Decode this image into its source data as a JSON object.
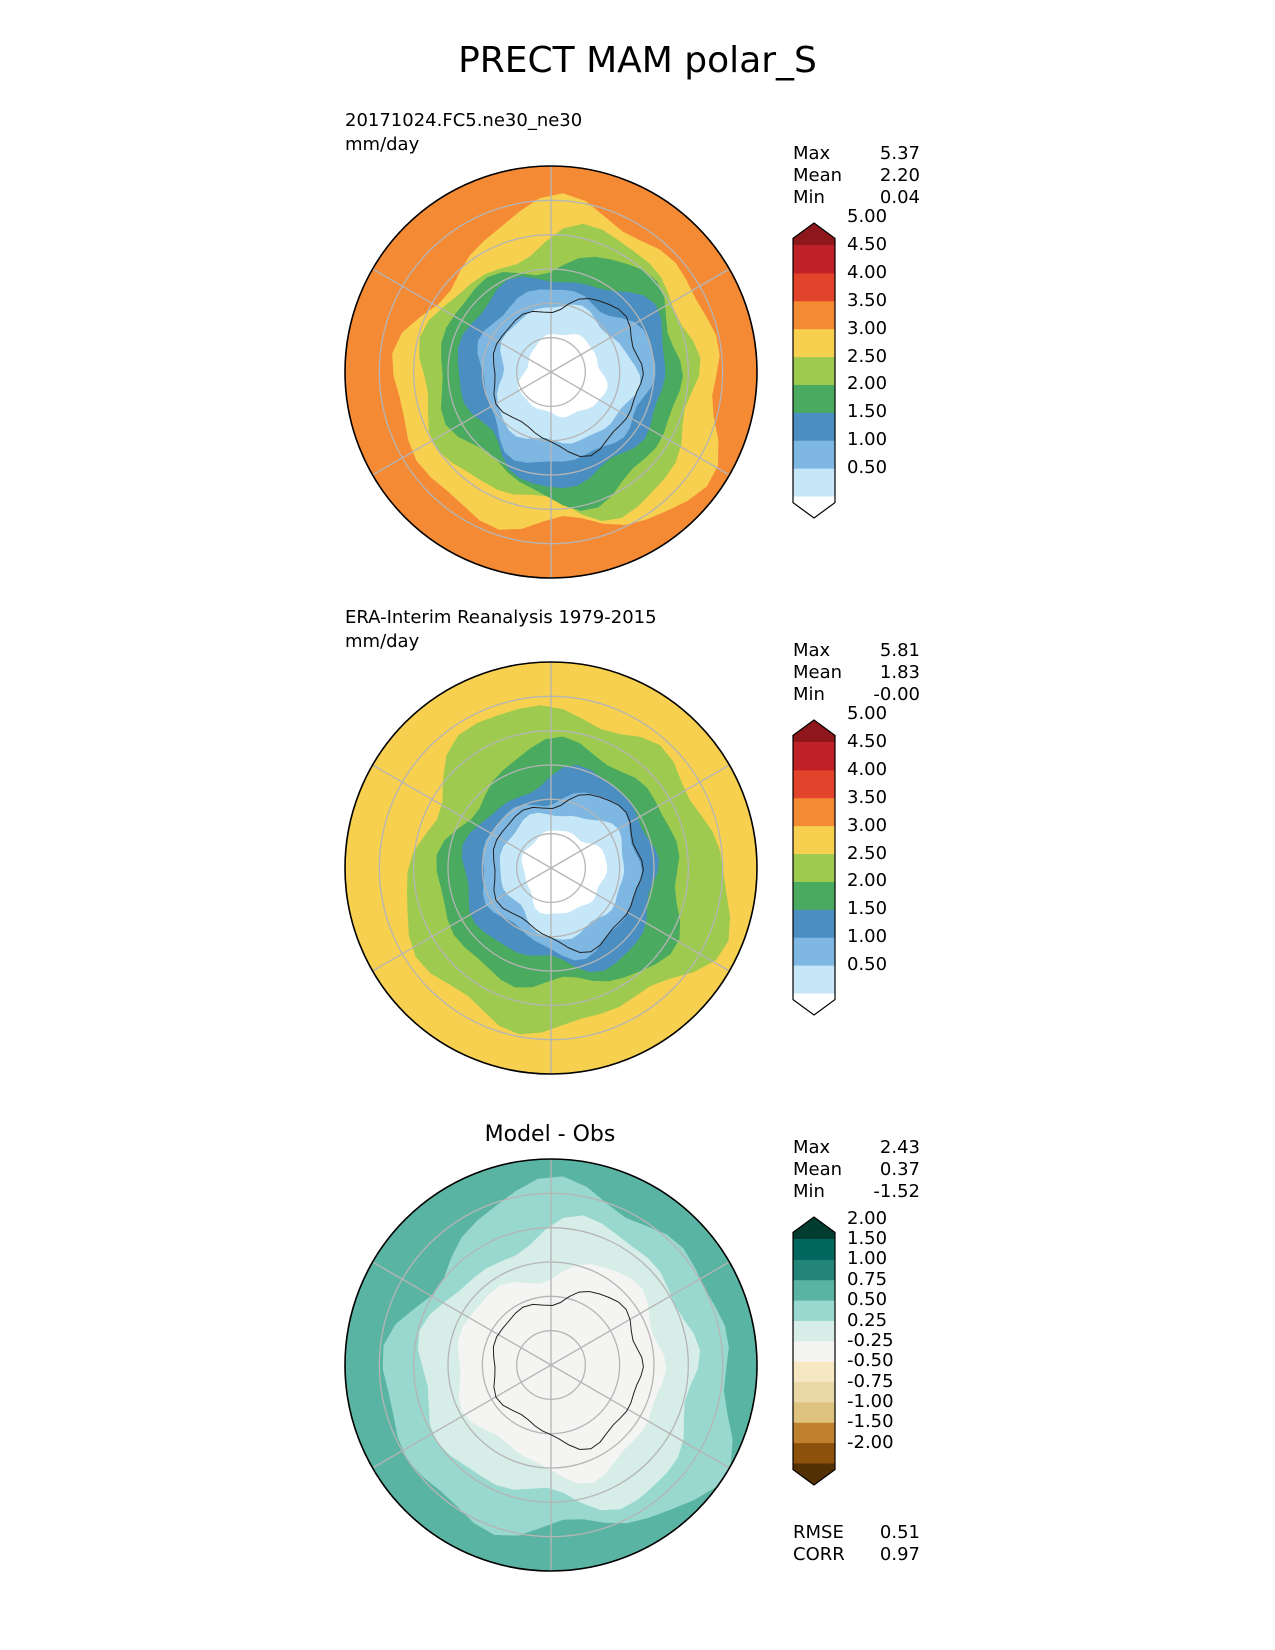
{
  "title": "PRECT MAM polar_S",
  "chart_data": [
    {
      "type": "polar-contour-map",
      "name": "test",
      "title": "20171024.FC5.ne30_ne30",
      "units": "mm/day",
      "stats": [
        {
          "label": "Max",
          "value": "5.37"
        },
        {
          "label": "Mean",
          "value": "2.20"
        },
        {
          "label": "Min",
          "value": "0.04"
        }
      ],
      "colorbar": {
        "levels": [
          "0.50",
          "1.00",
          "1.50",
          "2.00",
          "2.50",
          "3.00",
          "3.50",
          "4.00",
          "4.50",
          "5.00"
        ],
        "colors": [
          "#ffffff",
          "#c6e7f8",
          "#7db7e2",
          "#4a8ec2",
          "#4aaa5f",
          "#9ecb4f",
          "#f7d050",
          "#f58a35",
          "#e2432b",
          "#c02027",
          "#8e171b"
        ]
      },
      "field": {
        "bands_by_colat": [
          {
            "colat_max": 12,
            "level_index": 0
          },
          {
            "colat_max": 20,
            "level_index": 1
          },
          {
            "colat_max": 25,
            "level_index": 2
          },
          {
            "colat_max": 30,
            "level_index": 3
          },
          {
            "colat_max": 35,
            "level_index": 4
          },
          {
            "colat_max": 40,
            "level_index": 5
          },
          {
            "colat_max": 47,
            "level_index": 6
          },
          {
            "colat_max": 60,
            "level_index": 7
          }
        ]
      }
    },
    {
      "type": "polar-contour-map",
      "name": "reference",
      "title": "ERA-Interim Reanalysis 1979-2015",
      "units": "mm/day",
      "stats": [
        {
          "label": "Max",
          "value": "5.81"
        },
        {
          "label": "Mean",
          "value": "1.83"
        },
        {
          "label": "Min",
          "value": "-0.00"
        }
      ],
      "colorbar": {
        "levels": [
          "0.50",
          "1.00",
          "1.50",
          "2.00",
          "2.50",
          "3.00",
          "3.50",
          "4.00",
          "4.50",
          "5.00"
        ],
        "colors": [
          "#ffffff",
          "#c6e7f8",
          "#7db7e2",
          "#4a8ec2",
          "#4aaa5f",
          "#9ecb4f",
          "#f7d050",
          "#f58a35",
          "#e2432b",
          "#c02027",
          "#8e171b"
        ]
      },
      "field": {
        "bands_by_colat": [
          {
            "colat_max": 12,
            "level_index": 0
          },
          {
            "colat_max": 18,
            "level_index": 1
          },
          {
            "colat_max": 23,
            "level_index": 2
          },
          {
            "colat_max": 28,
            "level_index": 3
          },
          {
            "colat_max": 35,
            "level_index": 4
          },
          {
            "colat_max": 46,
            "level_index": 5
          },
          {
            "colat_max": 60,
            "level_index": 6
          }
        ]
      }
    },
    {
      "type": "polar-contour-map",
      "name": "diff",
      "title": "Model - Obs",
      "units": "",
      "stats": [
        {
          "label": "Max",
          "value": "2.43"
        },
        {
          "label": "Mean",
          "value": "0.37"
        },
        {
          "label": "Min",
          "value": "-1.52"
        }
      ],
      "metrics": [
        {
          "label": "RMSE",
          "value": "0.51"
        },
        {
          "label": "CORR",
          "value": "0.97"
        }
      ],
      "colorbar": {
        "levels": [
          "-2.00",
          "-1.50",
          "-1.00",
          "-0.75",
          "-0.50",
          "-0.25",
          "0.25",
          "0.50",
          "0.75",
          "1.00",
          "1.50",
          "2.00"
        ],
        "colors": [
          "#543005",
          "#8c510a",
          "#bf812d",
          "#dfc27d",
          "#e9d7a6",
          "#f6e8c3",
          "#f4f4f2",
          "#d6ede8",
          "#99d8ce",
          "#5ab4a4",
          "#228577",
          "#01665e",
          "#003c30"
        ]
      },
      "field": {
        "bands_by_colat": [
          {
            "colat_max": 30,
            "level_index": 6
          },
          {
            "colat_max": 40,
            "level_index": 7
          },
          {
            "colat_max": 50,
            "level_index": 8
          },
          {
            "colat_max": 60,
            "level_index": 9
          }
        ]
      }
    }
  ]
}
